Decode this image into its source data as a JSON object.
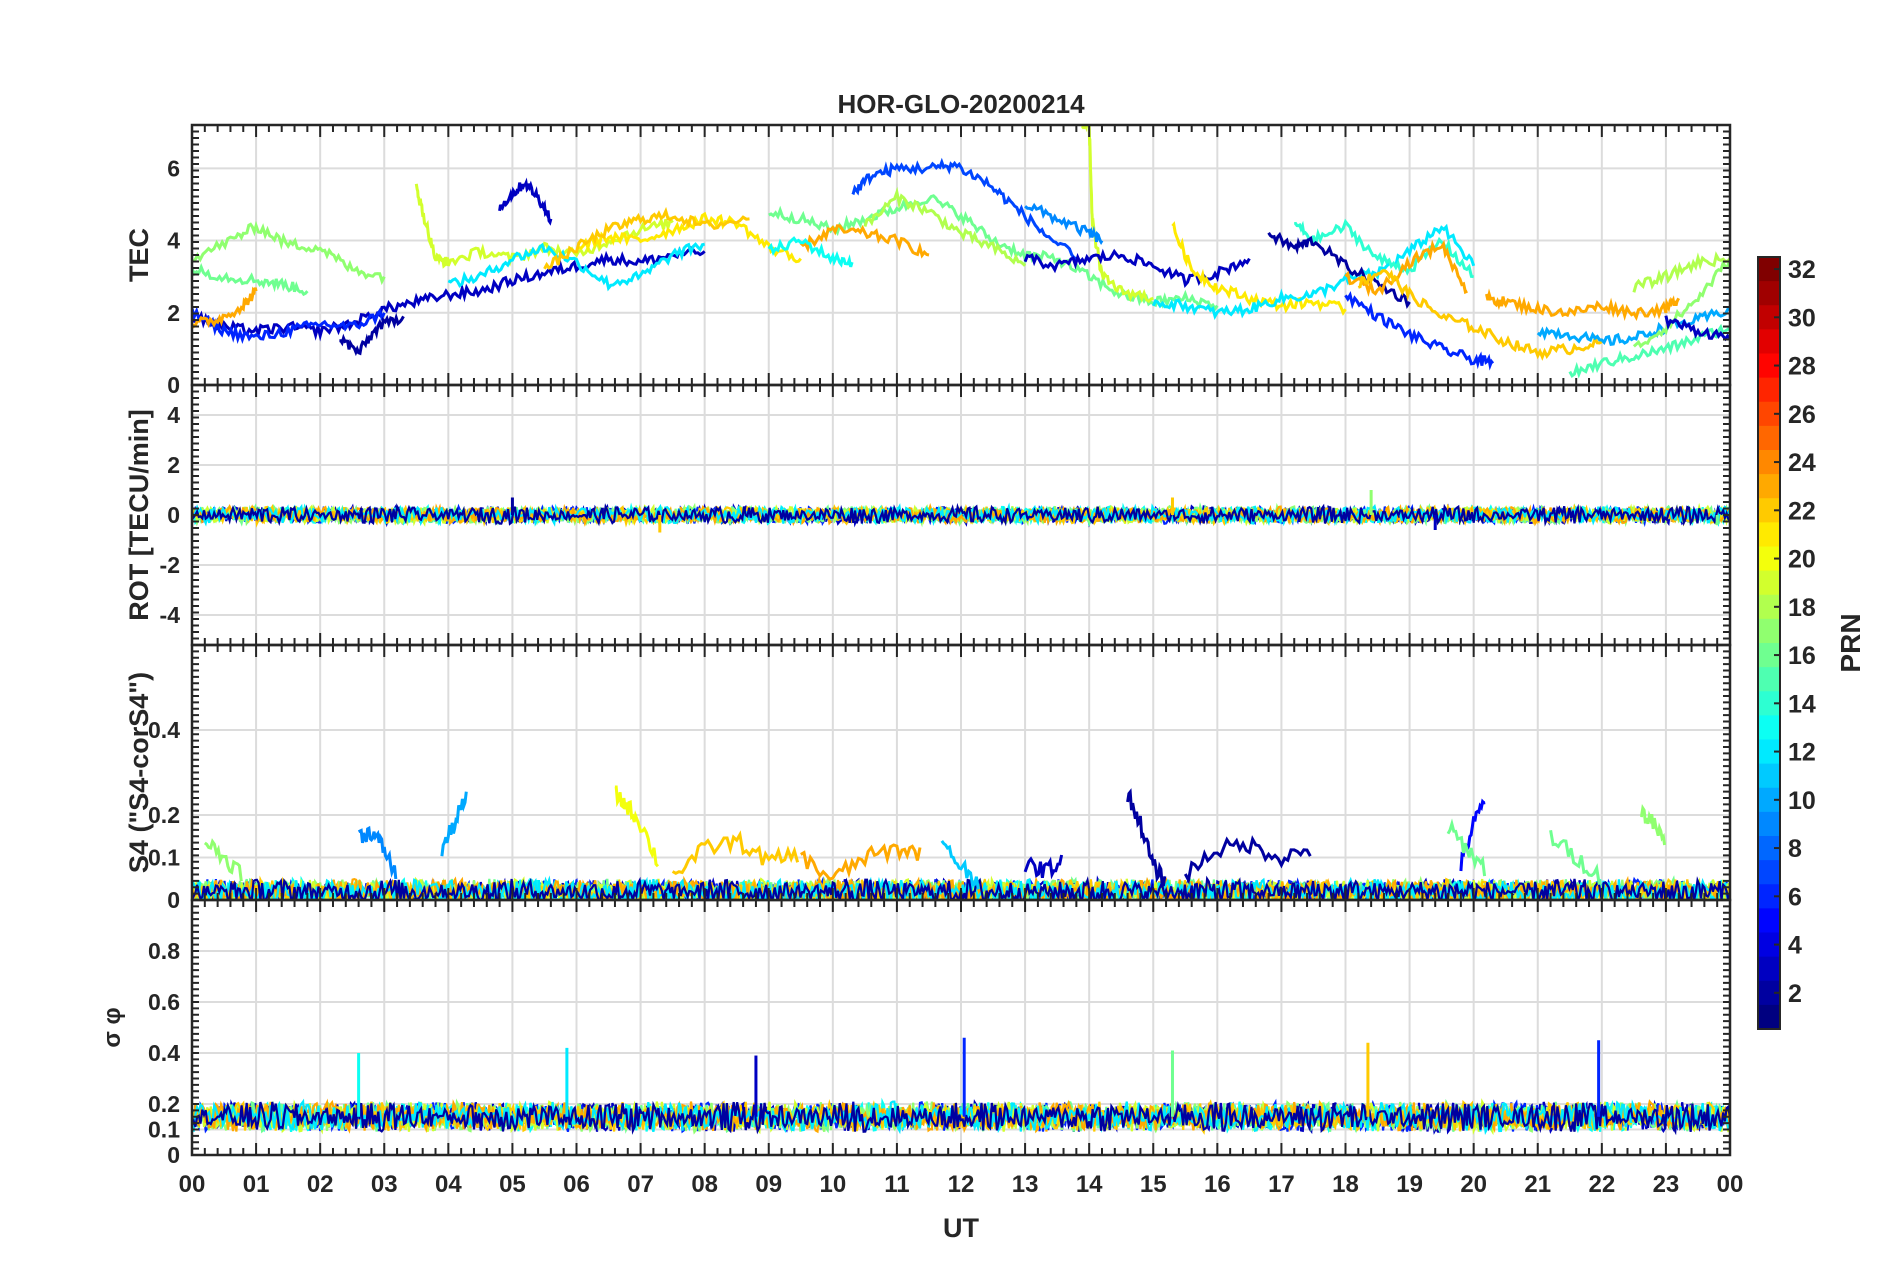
{
  "title": "HOR-GLO-20200214",
  "x_axis": {
    "label": "UT",
    "ticks": [
      "00",
      "01",
      "02",
      "03",
      "04",
      "05",
      "06",
      "07",
      "08",
      "09",
      "10",
      "11",
      "12",
      "13",
      "14",
      "15",
      "16",
      "17",
      "18",
      "19",
      "20",
      "21",
      "22",
      "23",
      "00"
    ],
    "range": [
      0,
      24
    ]
  },
  "colorbar": {
    "label": "PRN",
    "range": [
      1,
      32
    ],
    "ticks": [
      "2",
      "4",
      "6",
      "8",
      "10",
      "12",
      "14",
      "16",
      "18",
      "20",
      "22",
      "24",
      "26",
      "28",
      "30",
      "32"
    ]
  },
  "panels": [
    {
      "id": "tec",
      "ylabel": "TEC",
      "ylim": [
        0,
        7.2
      ],
      "yticks": [
        0,
        2,
        4,
        6
      ],
      "ytick_labels": [
        "0",
        "2",
        "4",
        "6"
      ]
    },
    {
      "id": "rot",
      "ylabel": "ROT [TECU/min]",
      "ylim": [
        -5.2,
        5.2
      ],
      "yticks": [
        -4,
        -2,
        0,
        2,
        4
      ],
      "ytick_labels": [
        "-4",
        "-2",
        "0",
        "2",
        "4"
      ]
    },
    {
      "id": "s4",
      "ylabel": "S4 (\"S4-corS4\")",
      "ylim": [
        0,
        0.6
      ],
      "yticks": [
        0,
        0.1,
        0.2,
        0.4
      ],
      "ytick_labels": [
        "0",
        "0.1",
        "0.2",
        "0.4"
      ]
    },
    {
      "id": "sigma",
      "ylabel": "σ φ",
      "ylim": [
        0,
        1.0
      ],
      "yticks": [
        0,
        0.1,
        0.2,
        0.4,
        0.6,
        0.8
      ],
      "ytick_labels": [
        "0",
        "0.1",
        "0.2",
        "0.4",
        "0.6",
        "0.8"
      ]
    }
  ],
  "chart_data": {
    "type": "line",
    "title": "HOR-GLO-20200214",
    "xlabel": "UT",
    "color_scale": "jet",
    "series": [
      {
        "panel": "tec",
        "name": "PRN 3",
        "prn": 3,
        "x": [
          0,
          0.5,
          1,
          1.5,
          2,
          2.5,
          3,
          3.5,
          4,
          4.5,
          5,
          5.5,
          6,
          6.5,
          7,
          7.5,
          8
        ],
        "y": [
          1.9,
          1.6,
          1.5,
          1.6,
          1.5,
          1.7,
          2.1,
          2.3,
          2.5,
          2.6,
          2.9,
          3.1,
          3.3,
          3.5,
          3.4,
          3.6,
          3.7
        ]
      },
      {
        "panel": "tec",
        "name": "PRN 6",
        "prn": 6,
        "x": [
          0,
          0.5,
          1,
          1.5,
          2,
          2.5,
          3
        ],
        "y": [
          2.0,
          1.5,
          1.3,
          1.5,
          1.7,
          1.6,
          2.0
        ]
      },
      {
        "panel": "tec",
        "name": "PRN 2",
        "prn": 2,
        "x": [
          2.3,
          2.6,
          2.9,
          3.3
        ],
        "y": [
          1.3,
          0.9,
          1.6,
          1.9
        ]
      },
      {
        "panel": "tec",
        "name": "PRN 17",
        "prn": 17,
        "x": [
          0,
          0.6,
          1,
          1.5,
          2,
          2.5,
          3
        ],
        "y": [
          3.5,
          4.0,
          4.4,
          3.9,
          3.8,
          3.2,
          3.0
        ]
      },
      {
        "panel": "tec",
        "name": "PRN 16",
        "prn": 16,
        "x": [
          0,
          0.5,
          1,
          1.4,
          1.8
        ],
        "y": [
          3.2,
          3.0,
          2.9,
          2.8,
          2.6
        ]
      },
      {
        "panel": "tec",
        "name": "PRN 23",
        "prn": 23,
        "x": [
          0,
          0.4,
          0.8,
          1.0
        ],
        "y": [
          1.7,
          1.8,
          2.2,
          2.6
        ]
      },
      {
        "panel": "tec",
        "name": "PRN 19",
        "prn": 19,
        "x": [
          3.5,
          3.6,
          3.8,
          4,
          4.5,
          5,
          5.5,
          6,
          6.5,
          7,
          7.5
        ],
        "y": [
          5.5,
          4.8,
          3.5,
          3.4,
          3.7,
          3.5,
          3.8,
          3.6,
          4.0,
          4.3,
          4.5
        ]
      },
      {
        "panel": "tec",
        "name": "PRN 3b",
        "prn": 3,
        "x": [
          4.8,
          5.0,
          5.2,
          5.4,
          5.6
        ],
        "y": [
          4.9,
          5.3,
          5.6,
          5.2,
          4.6
        ]
      },
      {
        "panel": "tec",
        "name": "PRN 12",
        "prn": 12,
        "x": [
          4,
          4.5,
          5,
          5.5,
          6,
          6.5,
          7,
          7.5,
          8
        ],
        "y": [
          2.8,
          3.0,
          3.5,
          3.8,
          3.4,
          2.8,
          3.0,
          3.6,
          3.9
        ]
      },
      {
        "panel": "tec",
        "name": "PRN 21",
        "prn": 21,
        "x": [
          6,
          6.5,
          7,
          7.5,
          8,
          8.5,
          9,
          9.5
        ],
        "y": [
          3.8,
          4.1,
          4.0,
          4.3,
          4.6,
          4.5,
          3.8,
          3.5
        ]
      },
      {
        "panel": "tec",
        "name": "PRN 22",
        "prn": 22,
        "x": [
          5.5,
          6,
          6.5,
          7,
          7.5,
          8,
          8.7
        ],
        "y": [
          3.2,
          3.8,
          4.3,
          4.6,
          4.7,
          4.4,
          4.6
        ]
      },
      {
        "panel": "tec",
        "name": "PRN 16b",
        "prn": 16,
        "x": [
          9,
          9.5,
          10,
          10.5,
          11,
          11.5,
          12,
          12.5,
          13,
          13.5,
          14,
          14.5,
          15,
          15.5,
          16
        ],
        "y": [
          4.8,
          4.6,
          4.3,
          4.6,
          4.9,
          5.2,
          4.7,
          4.0,
          3.6,
          3.5,
          3.0,
          2.5,
          2.3,
          2.4,
          2.2
        ]
      },
      {
        "panel": "tec",
        "name": "PRN 7",
        "prn": 7,
        "x": [
          10.3,
          10.6,
          11,
          11.5,
          11.9,
          12.4,
          12.8,
          13.3,
          13.8
        ],
        "y": [
          5.3,
          5.8,
          6.0,
          6.0,
          6.1,
          5.6,
          5.0,
          4.2,
          3.5
        ]
      },
      {
        "panel": "tec",
        "name": "PRN 23b",
        "prn": 23,
        "x": [
          9.5,
          10,
          10.5,
          11,
          11.5
        ],
        "y": [
          3.8,
          4.3,
          4.2,
          4.0,
          3.6
        ]
      },
      {
        "panel": "tec",
        "name": "PRN 13",
        "prn": 13,
        "x": [
          9,
          9.5,
          10,
          10.3
        ],
        "y": [
          3.7,
          4.0,
          3.5,
          3.4
        ]
      },
      {
        "panel": "tec",
        "name": "PRN 18",
        "prn": 18,
        "x": [
          10.5,
          11,
          11.5,
          12,
          12.5,
          13
        ],
        "y": [
          4.4,
          5.2,
          4.8,
          4.2,
          3.8,
          3.3
        ]
      },
      {
        "panel": "tec",
        "name": "PRN 19b",
        "prn": 19,
        "x": [
          13.9,
          14.0,
          14.05,
          14.2,
          14.5,
          15
        ],
        "y": [
          7.2,
          7.2,
          4.5,
          3.0,
          2.6,
          2.4
        ]
      },
      {
        "panel": "tec",
        "name": "PRN 9",
        "prn": 9,
        "x": [
          13,
          13.5,
          14,
          14.2
        ],
        "y": [
          5.0,
          4.6,
          4.2,
          4.0
        ]
      },
      {
        "panel": "tec",
        "name": "PRN 3c",
        "prn": 3,
        "x": [
          13,
          13.5,
          14,
          14.5,
          15,
          15.5,
          16,
          16.5
        ],
        "y": [
          3.5,
          3.3,
          3.5,
          3.6,
          3.3,
          2.9,
          3.1,
          3.5
        ]
      },
      {
        "panel": "tec",
        "name": "PRN 21b",
        "prn": 21,
        "x": [
          15.3,
          15.6,
          16,
          16.5,
          17,
          17.5,
          18
        ],
        "y": [
          4.4,
          3.2,
          2.7,
          2.4,
          2.2,
          2.3,
          2.1
        ]
      },
      {
        "panel": "tec",
        "name": "PRN 12b",
        "prn": 12,
        "x": [
          15,
          15.5,
          16,
          16.5,
          17,
          17.5,
          18,
          18.5,
          19,
          19.5,
          20
        ],
        "y": [
          2.3,
          2.2,
          2.0,
          2.1,
          2.4,
          2.5,
          2.9,
          3.1,
          3.7,
          4.4,
          3.3
        ]
      },
      {
        "panel": "tec",
        "name": "PRN 14",
        "prn": 14,
        "x": [
          17.2,
          17.5,
          18,
          18.5,
          19,
          19.5,
          20
        ],
        "y": [
          4.5,
          4.0,
          4.4,
          3.5,
          3.2,
          4.0,
          3.0
        ]
      },
      {
        "panel": "tec",
        "name": "PRN 2b",
        "prn": 2,
        "x": [
          16.8,
          17.2,
          17.5,
          18,
          18.5,
          19
        ],
        "y": [
          4.2,
          3.8,
          4.0,
          3.3,
          2.8,
          2.3
        ]
      },
      {
        "panel": "tec",
        "name": "PRN 6b",
        "prn": 6,
        "x": [
          18,
          18.5,
          19,
          19.5,
          20,
          20.3
        ],
        "y": [
          2.5,
          1.9,
          1.4,
          1.0,
          0.7,
          0.6
        ]
      },
      {
        "panel": "tec",
        "name": "PRN 23c",
        "prn": 23,
        "x": [
          18,
          18.5,
          19,
          19.5,
          19.9
        ],
        "y": [
          3.0,
          2.6,
          3.4,
          3.9,
          2.6
        ]
      },
      {
        "panel": "tec",
        "name": "PRN 22b",
        "prn": 22,
        "x": [
          18.2,
          18.6,
          19,
          19.5,
          20,
          20.5,
          21,
          21.5,
          22
        ],
        "y": [
          2.8,
          3.2,
          2.5,
          1.9,
          1.6,
          1.2,
          0.9,
          1.0,
          1.2
        ]
      },
      {
        "panel": "tec",
        "name": "PRN 23d",
        "prn": 23,
        "x": [
          20.2,
          20.5,
          21,
          21.5,
          22,
          22.5,
          23,
          23.2
        ],
        "y": [
          2.4,
          2.3,
          2.1,
          2.0,
          2.2,
          2.0,
          2.1,
          2.4
        ]
      },
      {
        "panel": "tec",
        "name": "PRN 10",
        "prn": 10,
        "x": [
          21,
          21.5,
          22,
          22.5,
          23,
          23.5,
          24
        ],
        "y": [
          1.5,
          1.4,
          1.2,
          1.3,
          1.6,
          1.8,
          2.1
        ]
      },
      {
        "panel": "tec",
        "name": "PRN 15",
        "prn": 15,
        "x": [
          21.5,
          22,
          22.5,
          23,
          23.5,
          24
        ],
        "y": [
          0.3,
          0.6,
          0.8,
          1.0,
          1.3,
          1.6
        ]
      },
      {
        "panel": "tec",
        "name": "PRN 17b",
        "prn": 17,
        "x": [
          22.5,
          23,
          23.5,
          24
        ],
        "y": [
          1.0,
          1.6,
          2.4,
          3.5
        ]
      },
      {
        "panel": "tec",
        "name": "PRN 3d",
        "prn": 3,
        "x": [
          23,
          23.5,
          24
        ],
        "y": [
          1.8,
          1.5,
          1.3
        ]
      },
      {
        "panel": "tec",
        "name": "PRN 18b",
        "prn": 18,
        "x": [
          22.5,
          23,
          23.5,
          24
        ],
        "y": [
          2.7,
          3.0,
          3.4,
          3.5
        ]
      }
    ],
    "bands": [
      {
        "panel": "rot",
        "note": "all PRNs",
        "x": [
          0,
          24
        ],
        "center": 0,
        "amplitude": 0.35,
        "spikes": [
          [
            5.0,
            0.7
          ],
          [
            7.3,
            -0.7
          ],
          [
            15.3,
            0.7
          ],
          [
            18.4,
            1.0
          ],
          [
            19.4,
            -0.6
          ],
          [
            23.8,
            -0.4
          ]
        ]
      },
      {
        "panel": "s4",
        "note": "all PRNs",
        "x": [
          0,
          24
        ],
        "center": 0.02,
        "amplitude": 0.03
      },
      {
        "panel": "sigma",
        "note": "all PRNs",
        "x": [
          0,
          24
        ],
        "center": 0.15,
        "amplitude": 0.06,
        "spikes": [
          [
            2.6,
            0.4
          ],
          [
            5.85,
            0.42
          ],
          [
            8.8,
            0.39
          ],
          [
            12.05,
            0.46
          ],
          [
            15.3,
            0.41
          ],
          [
            18.35,
            0.44
          ],
          [
            21.95,
            0.45
          ]
        ]
      }
    ],
    "s4_events": [
      {
        "prn": 9,
        "x": [
          2.6,
          2.8,
          3.0,
          3.2
        ],
        "y": [
          0.15,
          0.16,
          0.12,
          0.05
        ]
      },
      {
        "prn": 10,
        "x": [
          3.9,
          4.1,
          4.3
        ],
        "y": [
          0.12,
          0.18,
          0.25
        ]
      },
      {
        "prn": 20,
        "x": [
          6.6,
          6.8,
          7.0,
          7.3
        ],
        "y": [
          0.25,
          0.22,
          0.18,
          0.08
        ]
      },
      {
        "prn": 22,
        "x": [
          7.5,
          8,
          8.5,
          9,
          9.5
        ],
        "y": [
          0.06,
          0.12,
          0.14,
          0.09,
          0.11
        ]
      },
      {
        "prn": 23,
        "x": [
          9.5,
          10,
          10.5,
          11,
          11.4
        ],
        "y": [
          0.1,
          0.05,
          0.1,
          0.12,
          0.11
        ]
      },
      {
        "prn": 2,
        "x": [
          14.6,
          14.8,
          15.0,
          15.2
        ],
        "y": [
          0.25,
          0.18,
          0.08,
          0.04
        ]
      },
      {
        "prn": 2,
        "x": [
          15.5,
          16,
          16.5,
          17,
          17.5
        ],
        "y": [
          0.06,
          0.12,
          0.13,
          0.1,
          0.12
        ]
      },
      {
        "prn": 5,
        "x": [
          19.8,
          20,
          20.2
        ],
        "y": [
          0.08,
          0.18,
          0.24
        ]
      },
      {
        "prn": 16,
        "x": [
          19.6,
          19.9,
          20.2
        ],
        "y": [
          0.17,
          0.12,
          0.07
        ]
      },
      {
        "prn": 17,
        "x": [
          22.6,
          22.8,
          23.0
        ],
        "y": [
          0.21,
          0.18,
          0.13
        ]
      },
      {
        "prn": 16,
        "x": [
          21.2,
          21.6,
          22.0
        ],
        "y": [
          0.15,
          0.1,
          0.05
        ]
      },
      {
        "prn": 17,
        "x": [
          0.2,
          0.5,
          0.8
        ],
        "y": [
          0.14,
          0.1,
          0.06
        ]
      },
      {
        "prn": 11,
        "x": [
          11.7,
          12,
          12.3
        ],
        "y": [
          0.13,
          0.08,
          0.04
        ]
      },
      {
        "prn": 3,
        "x": [
          13,
          13.3,
          13.6
        ],
        "y": [
          0.08,
          0.07,
          0.09
        ]
      }
    ]
  }
}
